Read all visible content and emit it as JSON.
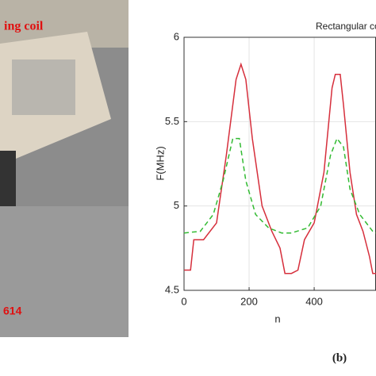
{
  "chart_data": {
    "type": "line",
    "title": "Rectangular coil foldi",
    "xlabel": "n",
    "ylabel": "F(MHz)",
    "panel_label": "(b)",
    "photo_labels": [
      "ing coil",
      "614"
    ],
    "xlim": [
      0,
      590
    ],
    "ylim": [
      4.5,
      6
    ],
    "xticks": [
      0,
      200,
      400
    ],
    "yticks": [
      4.5,
      5,
      5.5,
      6
    ],
    "grid": true,
    "series": [
      {
        "color": "#d62f3c",
        "dash": false,
        "x": [
          0,
          20,
          30,
          60,
          100,
          130,
          160,
          175,
          190,
          210,
          240,
          270,
          295,
          310,
          330,
          350,
          370,
          400,
          430,
          455,
          465,
          480,
          490,
          510,
          530,
          550,
          570,
          580,
          590
        ],
        "values": [
          4.62,
          4.62,
          4.8,
          4.8,
          4.9,
          5.3,
          5.75,
          5.84,
          5.75,
          5.4,
          5.0,
          4.85,
          4.75,
          4.6,
          4.6,
          4.62,
          4.8,
          4.9,
          5.2,
          5.7,
          5.78,
          5.78,
          5.6,
          5.2,
          4.95,
          4.85,
          4.7,
          4.6,
          4.6
        ]
      },
      {
        "color": "#33bb33",
        "dash": true,
        "x": [
          0,
          50,
          90,
          120,
          150,
          170,
          190,
          220,
          260,
          300,
          330,
          380,
          420,
          450,
          470,
          490,
          510,
          540,
          580,
          590
        ],
        "values": [
          4.84,
          4.85,
          4.95,
          5.15,
          5.4,
          5.4,
          5.15,
          4.95,
          4.87,
          4.84,
          4.84,
          4.87,
          5.0,
          5.3,
          5.4,
          5.35,
          5.1,
          4.95,
          4.85,
          4.84
        ]
      }
    ]
  }
}
